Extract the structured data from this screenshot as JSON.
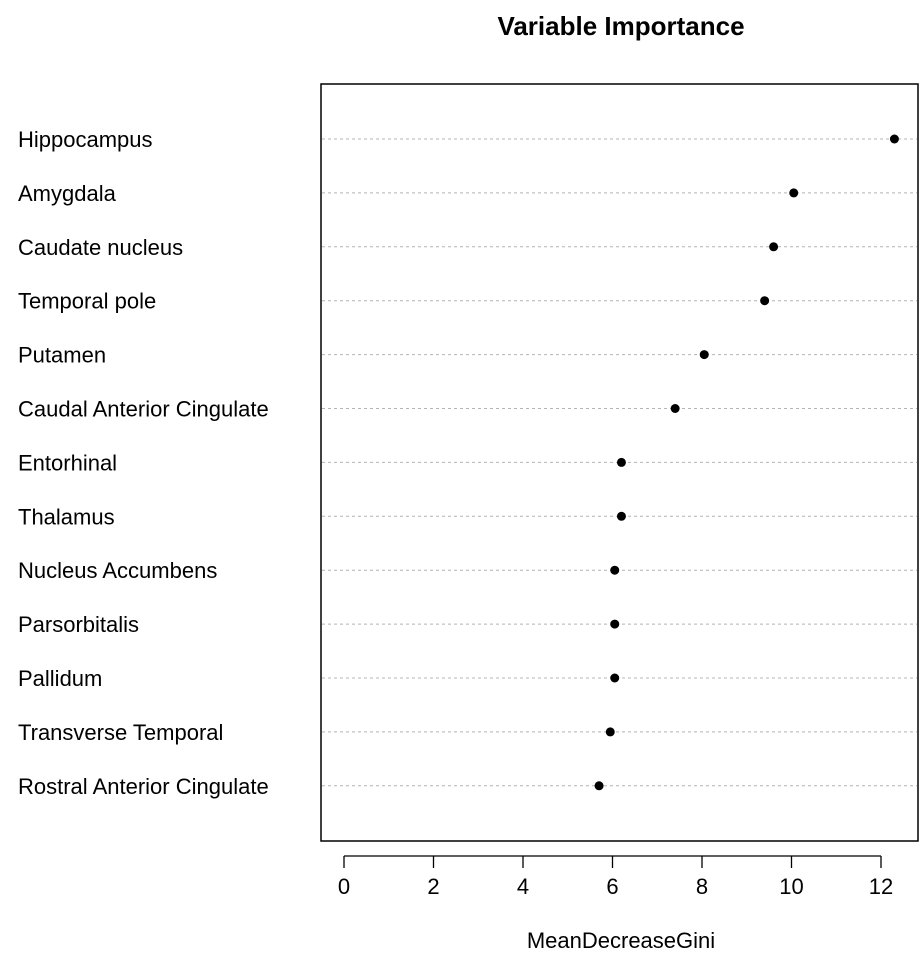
{
  "chart_data": {
    "type": "scatter",
    "title": "Variable Importance",
    "xlabel": "MeanDecreaseGini",
    "ylabel": "",
    "xlim": [
      -0.5,
      12.5
    ],
    "xticks": [
      0,
      2,
      4,
      6,
      8,
      10,
      12
    ],
    "grid": "dotted horizontal lines per variable",
    "categories": [
      "Hippocampus",
      "Amygdala",
      "Caudate nucleus",
      "Temporal pole",
      "Putamen",
      "Caudal Anterior Cingulate",
      "Entorhinal",
      "Thalamus",
      "Nucleus Accumbens",
      "Parsorbitalis",
      "Pallidum",
      "Transverse Temporal",
      "Rostral Anterior Cingulate"
    ],
    "values": [
      12.3,
      10.05,
      9.6,
      9.4,
      8.05,
      7.4,
      6.2,
      6.2,
      6.05,
      6.05,
      6.05,
      5.95,
      5.7
    ]
  }
}
